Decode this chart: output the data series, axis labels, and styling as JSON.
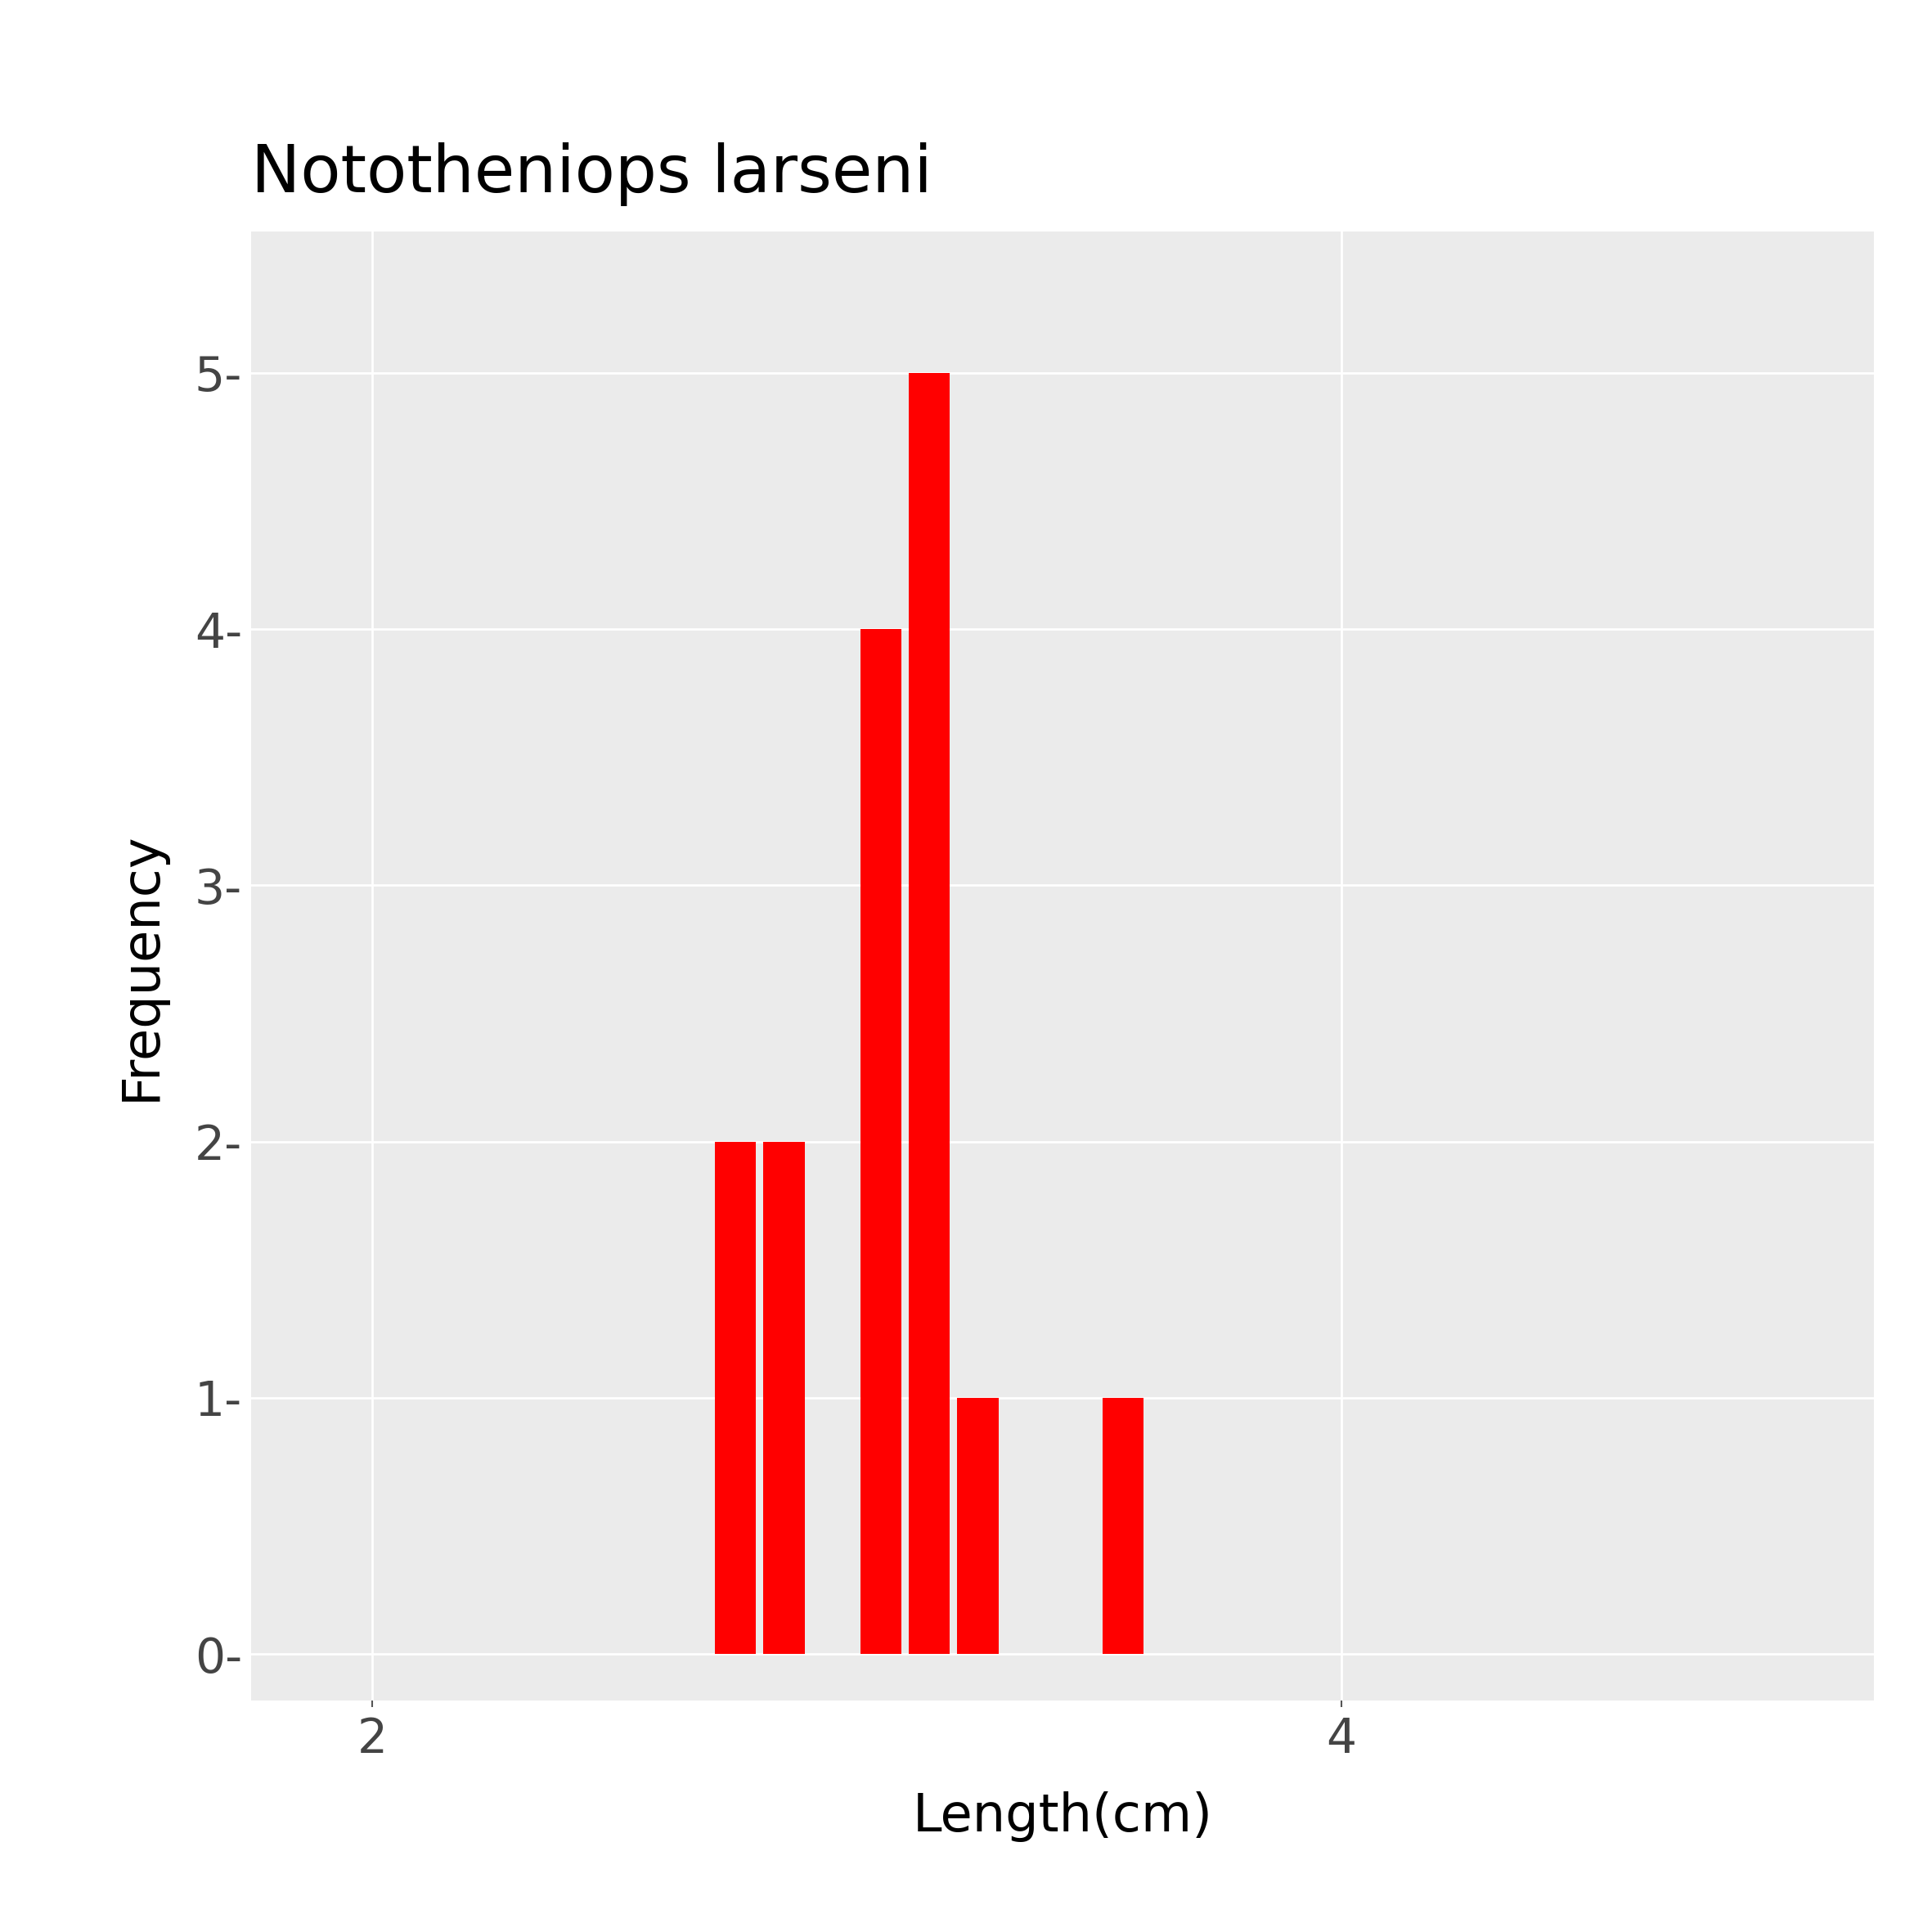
{
  "title": "Nototheniops larseni",
  "xlabel": "Length(cm)",
  "ylabel": "Frequency",
  "bar_color": "#FF0000",
  "figure_background_color": "#FFFFFF",
  "plot_background_color": "#EBEBEB",
  "grid_color": "#FFFFFF",
  "tick_label_color": "#444444",
  "xlim": [
    1.75,
    5.1
  ],
  "ylim": [
    -0.18,
    5.55
  ],
  "xticks": [
    2,
    4
  ],
  "yticks": [
    0,
    1,
    2,
    3,
    4,
    5
  ],
  "bar_centers": [
    2.75,
    2.85,
    3.05,
    3.15,
    3.25,
    3.55
  ],
  "bar_heights": [
    2,
    2,
    4,
    5,
    1,
    1
  ],
  "bar_width": 0.085,
  "title_fontsize": 58,
  "axis_label_fontsize": 46,
  "tick_fontsize": 42
}
